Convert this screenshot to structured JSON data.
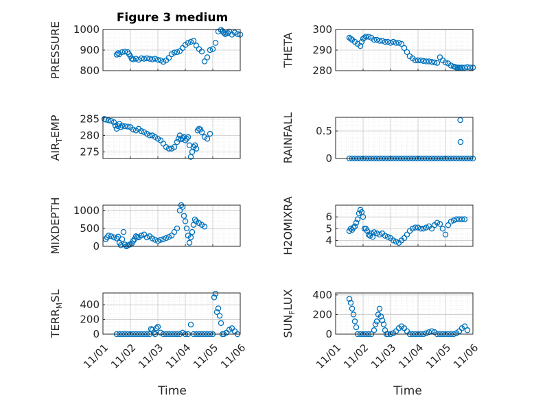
{
  "figure": {
    "title": "Figure 3 medium"
  },
  "colors": {
    "marker": "#0072BD",
    "axis": "#262626",
    "grid": "#d9d9d9",
    "background": "#ffffff"
  },
  "chart_data": [
    {
      "type": "scatter",
      "title": "Figure 3 medium",
      "ylabel": "PRESSURE",
      "ylabel_parts": [
        {
          "t": "PRESSURE",
          "sub": false
        }
      ],
      "xlim": [
        0,
        5
      ],
      "ylim": [
        800,
        1000
      ],
      "yticks": [
        800,
        900,
        1000
      ],
      "x": [
        0.5,
        0.55,
        0.6,
        0.7,
        0.8,
        0.9,
        0.95,
        1.0,
        1.05,
        1.1,
        1.2,
        1.3,
        1.4,
        1.5,
        1.6,
        1.7,
        1.8,
        1.9,
        2.0,
        2.1,
        2.2,
        2.3,
        2.4,
        2.5,
        2.6,
        2.7,
        2.8,
        2.9,
        3.0,
        3.1,
        3.2,
        3.3,
        3.4,
        3.5,
        3.6,
        3.7,
        3.8,
        3.9,
        4.0,
        4.1,
        4.2,
        4.3,
        4.35,
        4.4,
        4.45,
        4.5,
        4.55,
        4.6,
        4.7,
        4.8,
        4.9,
        5.0
      ],
      "y": [
        878,
        885,
        880,
        890,
        893,
        890,
        880,
        870,
        858,
        855,
        858,
        853,
        860,
        858,
        860,
        858,
        855,
        858,
        853,
        850,
        843,
        850,
        862,
        880,
        888,
        890,
        895,
        910,
        925,
        935,
        940,
        945,
        922,
        905,
        893,
        845,
        865,
        900,
        905,
        935,
        990,
        998,
        992,
        985,
        978,
        980,
        983,
        990,
        975,
        985,
        978,
        975
      ]
    },
    {
      "type": "scatter",
      "ylabel": "THETA",
      "ylabel_parts": [
        {
          "t": "THETA",
          "sub": false
        }
      ],
      "xlim": [
        0,
        5
      ],
      "ylim": [
        280,
        300
      ],
      "yticks": [
        280,
        290,
        300
      ],
      "x": [
        0.5,
        0.55,
        0.6,
        0.7,
        0.8,
        0.9,
        0.95,
        1.0,
        1.05,
        1.1,
        1.2,
        1.3,
        1.4,
        1.5,
        1.6,
        1.7,
        1.8,
        1.9,
        2.0,
        2.1,
        2.2,
        2.3,
        2.4,
        2.5,
        2.6,
        2.7,
        2.8,
        2.9,
        3.0,
        3.1,
        3.2,
        3.3,
        3.4,
        3.5,
        3.6,
        3.7,
        3.8,
        3.9,
        4.0,
        4.1,
        4.2,
        4.3,
        4.35,
        4.4,
        4.45,
        4.5,
        4.55,
        4.6,
        4.7,
        4.8,
        4.9,
        5.0
      ],
      "y": [
        296,
        295.5,
        295,
        294,
        293,
        292,
        294,
        295.5,
        296,
        296.5,
        296.5,
        296,
        295,
        295,
        294.5,
        294.5,
        294,
        294,
        293.5,
        294,
        293.5,
        293.5,
        293,
        291,
        289,
        287,
        286,
        285,
        285,
        285,
        284.7,
        284.5,
        284.5,
        284.3,
        284,
        283.8,
        286.5,
        285,
        284,
        283.5,
        282.5,
        282,
        281.8,
        281.5,
        281.5,
        281.5,
        281.3,
        281.5,
        281.5,
        281.7,
        281.5,
        281.5
      ]
    },
    {
      "type": "scatter",
      "ylabel": "AIR_TEMP",
      "ylabel_parts": [
        {
          "t": "AIR",
          "sub": false
        },
        {
          "t": "T",
          "sub": true
        },
        {
          "t": "EMP",
          "sub": false
        }
      ],
      "xlim": [
        0,
        5
      ],
      "ylim": [
        273,
        285.5
      ],
      "yticks": [
        275,
        280,
        285
      ],
      "x": [
        0.05,
        0.1,
        0.2,
        0.3,
        0.4,
        0.45,
        0.5,
        0.55,
        0.6,
        0.65,
        0.7,
        0.8,
        0.9,
        1.0,
        1.1,
        1.2,
        1.3,
        1.4,
        1.5,
        1.6,
        1.7,
        1.8,
        1.9,
        2.0,
        2.1,
        2.2,
        2.3,
        2.4,
        2.5,
        2.6,
        2.7,
        2.75,
        2.8,
        2.85,
        2.9,
        2.95,
        3.0,
        3.05,
        3.1,
        3.15,
        3.2,
        3.25,
        3.3,
        3.35,
        3.4,
        3.45,
        3.5,
        3.55,
        3.6,
        3.7,
        3.8,
        3.9
      ],
      "y": [
        285,
        284.8,
        284.6,
        284.4,
        284,
        283,
        282,
        282.8,
        283.5,
        282.5,
        283,
        282.8,
        282.7,
        282.5,
        281.8,
        281.5,
        282,
        281.3,
        281,
        280.5,
        280,
        280,
        279.5,
        279,
        278.5,
        277.5,
        276.5,
        276,
        276,
        276.5,
        278,
        279,
        280,
        278.8,
        279.2,
        279.5,
        278.5,
        279,
        279.5,
        277,
        273.5,
        275,
        276.5,
        277,
        276,
        281.5,
        282,
        281.8,
        281,
        279.5,
        279,
        280.5
      ]
    },
    {
      "type": "scatter",
      "ylabel": "RAINFALL",
      "ylabel_parts": [
        {
          "t": "RAINFALL",
          "sub": false
        }
      ],
      "xlim": [
        0,
        5
      ],
      "ylim": [
        0,
        0.75
      ],
      "yticks": [
        0,
        0.5
      ],
      "x": [
        0.5,
        0.6,
        0.7,
        0.8,
        0.9,
        1.0,
        1.1,
        1.2,
        1.3,
        1.4,
        1.5,
        1.6,
        1.7,
        1.8,
        1.9,
        2.0,
        2.1,
        2.2,
        2.3,
        2.4,
        2.5,
        2.6,
        2.7,
        2.8,
        2.9,
        3.0,
        3.1,
        3.2,
        3.3,
        3.4,
        3.5,
        3.6,
        3.7,
        3.8,
        3.9,
        4.0,
        4.1,
        4.2,
        4.3,
        4.4,
        4.5,
        4.6,
        4.7,
        4.8,
        4.9,
        5.0,
        4.54,
        4.55
      ],
      "y": [
        0,
        0,
        0,
        0,
        0,
        0,
        0,
        0,
        0,
        0,
        0,
        0,
        0,
        0,
        0,
        0,
        0,
        0,
        0,
        0,
        0,
        0,
        0,
        0,
        0,
        0,
        0,
        0,
        0,
        0,
        0,
        0,
        0,
        0,
        0,
        0,
        0,
        0,
        0,
        0,
        0,
        0,
        0,
        0,
        0,
        0,
        0.7,
        0.3
      ]
    },
    {
      "type": "scatter",
      "ylabel": "MIXDEPTH",
      "ylabel_parts": [
        {
          "t": "MIXDEPTH",
          "sub": false
        }
      ],
      "xlim": [
        0,
        5
      ],
      "ylim": [
        0,
        1150
      ],
      "yticks": [
        0,
        500,
        1000
      ],
      "x": [
        0.1,
        0.15,
        0.2,
        0.3,
        0.4,
        0.5,
        0.55,
        0.6,
        0.65,
        0.7,
        0.75,
        0.8,
        0.85,
        0.9,
        0.95,
        1.0,
        1.05,
        1.1,
        1.15,
        1.2,
        1.25,
        1.3,
        1.4,
        1.5,
        1.6,
        1.7,
        1.8,
        1.9,
        2.0,
        2.1,
        2.2,
        2.3,
        2.4,
        2.5,
        2.6,
        2.7,
        2.8,
        2.85,
        2.9,
        2.95,
        3.0,
        3.05,
        3.1,
        3.15,
        3.2,
        3.25,
        3.3,
        3.35,
        3.4,
        3.5,
        3.6,
        3.7
      ],
      "y": [
        200,
        250,
        300,
        280,
        250,
        220,
        270,
        100,
        30,
        200,
        400,
        50,
        0,
        20,
        40,
        60,
        80,
        150,
        200,
        280,
        260,
        250,
        300,
        330,
        250,
        280,
        220,
        180,
        150,
        180,
        200,
        230,
        260,
        300,
        400,
        500,
        1000,
        1150,
        1100,
        850,
        700,
        500,
        300,
        100,
        250,
        400,
        600,
        750,
        700,
        650,
        600,
        550
      ]
    },
    {
      "type": "scatter",
      "ylabel": "H2OMIXRA",
      "ylabel_parts": [
        {
          "t": "H2OMIXRA",
          "sub": false
        }
      ],
      "xlim": [
        0,
        5
      ],
      "ylim": [
        3.5,
        7
      ],
      "yticks": [
        4,
        5,
        6
      ],
      "x": [
        0.5,
        0.55,
        0.6,
        0.65,
        0.7,
        0.75,
        0.8,
        0.85,
        0.9,
        0.95,
        1.0,
        1.05,
        1.1,
        1.15,
        1.2,
        1.25,
        1.3,
        1.35,
        1.4,
        1.5,
        1.6,
        1.7,
        1.8,
        1.9,
        2.0,
        2.1,
        2.2,
        2.3,
        2.4,
        2.5,
        2.6,
        2.7,
        2.8,
        2.9,
        3.0,
        3.1,
        3.2,
        3.3,
        3.4,
        3.5,
        3.6,
        3.7,
        3.8,
        3.9,
        4.0,
        4.1,
        4.2,
        4.3,
        4.4,
        4.5,
        4.6,
        4.7
      ],
      "y": [
        4.8,
        5.0,
        4.9,
        5.1,
        5.2,
        5.5,
        5.8,
        6.3,
        6.6,
        6.4,
        6.0,
        5.0,
        5.0,
        4.8,
        4.5,
        4.4,
        4.6,
        4.3,
        4.7,
        4.6,
        4.5,
        4.6,
        4.4,
        4.3,
        4.2,
        4.0,
        3.9,
        3.8,
        4.0,
        4.2,
        4.5,
        4.8,
        5.0,
        5.1,
        5.1,
        5.0,
        5.0,
        5.1,
        5.2,
        5.0,
        5.3,
        5.5,
        5.4,
        5.0,
        4.5,
        5.3,
        5.6,
        5.7,
        5.8,
        5.8,
        5.8,
        5.8
      ]
    },
    {
      "type": "scatter",
      "ylabel": "TERR_MSL",
      "ylabel_parts": [
        {
          "t": "TERR",
          "sub": false
        },
        {
          "t": "M",
          "sub": true
        },
        {
          "t": "SL",
          "sub": false
        }
      ],
      "xlim": [
        0,
        5
      ],
      "ylim": [
        0,
        560
      ],
      "yticks": [
        0,
        200,
        400
      ],
      "x": [
        0.5,
        0.6,
        0.7,
        0.8,
        0.9,
        1.0,
        1.1,
        1.2,
        1.3,
        1.4,
        1.5,
        1.6,
        1.7,
        1.75,
        1.8,
        1.85,
        1.9,
        1.95,
        2.0,
        2.1,
        2.2,
        2.3,
        2.4,
        2.5,
        2.6,
        2.7,
        2.8,
        2.9,
        3.0,
        3.1,
        3.2,
        3.3,
        3.4,
        3.5,
        3.6,
        3.7,
        3.8,
        3.9,
        4.0,
        4.05,
        4.1,
        4.15,
        4.2,
        4.25,
        4.3,
        4.35,
        4.4,
        4.5,
        4.6,
        4.7,
        4.8,
        4.9
      ],
      "y": [
        0,
        0,
        0,
        0,
        0,
        0,
        0,
        0,
        0,
        0,
        0,
        0,
        0,
        70,
        60,
        20,
        0,
        80,
        100,
        20,
        0,
        0,
        0,
        0,
        0,
        0,
        0,
        20,
        0,
        0,
        130,
        0,
        0,
        0,
        0,
        0,
        0,
        0,
        0,
        500,
        550,
        300,
        350,
        250,
        150,
        0,
        0,
        20,
        60,
        80,
        40,
        0
      ]
    },
    {
      "type": "scatter",
      "ylabel": "SUN_FLUX",
      "ylabel_parts": [
        {
          "t": "SUN",
          "sub": false
        },
        {
          "t": "F",
          "sub": true
        },
        {
          "t": "LUX",
          "sub": false
        }
      ],
      "xlim": [
        0,
        5
      ],
      "ylim": [
        0,
        420
      ],
      "yticks": [
        0,
        200,
        400
      ],
      "x": [
        0.5,
        0.55,
        0.6,
        0.65,
        0.7,
        0.75,
        0.8,
        0.9,
        1.0,
        1.1,
        1.2,
        1.3,
        1.4,
        1.45,
        1.5,
        1.55,
        1.6,
        1.65,
        1.7,
        1.75,
        1.8,
        1.85,
        1.9,
        2.0,
        2.1,
        2.2,
        2.3,
        2.4,
        2.5,
        2.6,
        2.7,
        2.8,
        2.9,
        3.0,
        3.1,
        3.2,
        3.3,
        3.4,
        3.5,
        3.6,
        3.7,
        3.8,
        3.9,
        4.0,
        4.1,
        4.2,
        4.3,
        4.4,
        4.5,
        4.6,
        4.7,
        4.8
      ],
      "y": [
        360,
        320,
        260,
        200,
        130,
        70,
        0,
        0,
        0,
        0,
        0,
        0,
        40,
        100,
        130,
        200,
        260,
        180,
        140,
        100,
        40,
        0,
        0,
        0,
        10,
        30,
        60,
        80,
        60,
        30,
        0,
        0,
        0,
        0,
        0,
        0,
        10,
        20,
        30,
        20,
        0,
        0,
        0,
        0,
        0,
        0,
        0,
        10,
        30,
        60,
        80,
        40
      ]
    }
  ],
  "x_axis": {
    "tick_labels": [
      "11/01",
      "11/02",
      "11/03",
      "11/04",
      "11/05",
      "11/06"
    ],
    "label": "Time"
  }
}
